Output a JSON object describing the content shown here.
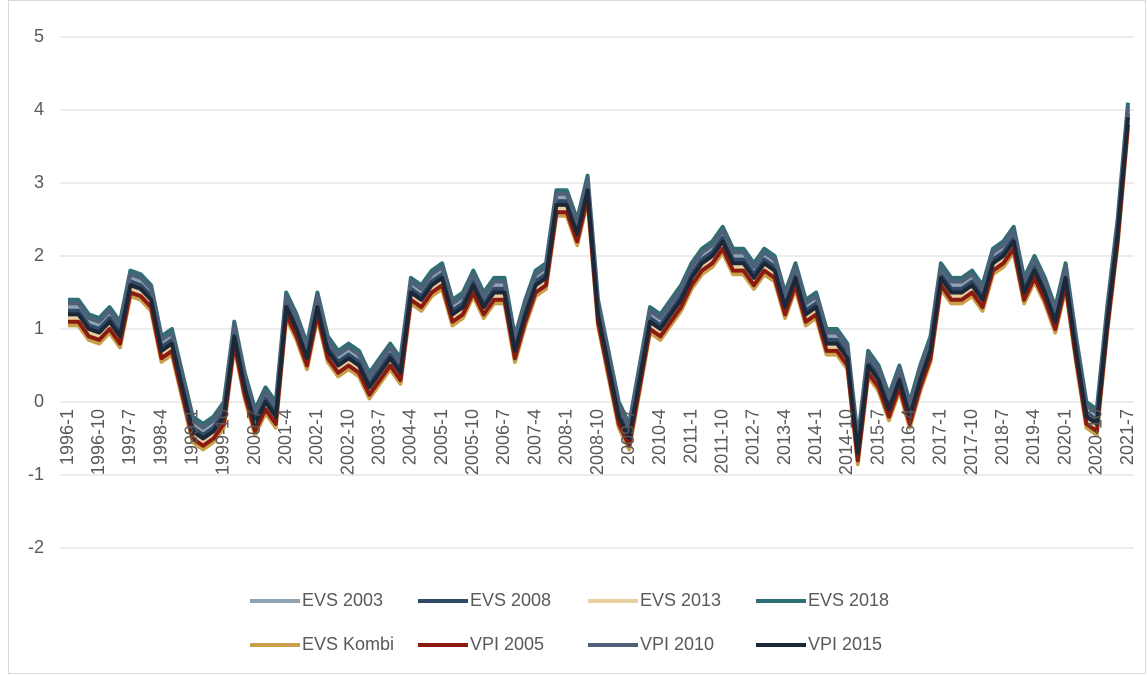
{
  "chart_data": {
    "type": "line",
    "categories": [
      "1996-1",
      null,
      null,
      "1996-10",
      null,
      null,
      "1997-7",
      null,
      null,
      "1998-4",
      null,
      null,
      "1999-1",
      null,
      null,
      "1999-10",
      null,
      null,
      "2000-7",
      null,
      null,
      "2001-4",
      null,
      null,
      "2002-1",
      null,
      null,
      "2002-10",
      null,
      null,
      "2003-7",
      null,
      null,
      "2004-4",
      null,
      null,
      "2005-1",
      null,
      null,
      "2005-10",
      null,
      null,
      "2006-7",
      null,
      null,
      "2007-4",
      null,
      null,
      "2008-1",
      null,
      null,
      "2008-10",
      null,
      null,
      "2009-7",
      null,
      null,
      "2010-4",
      null,
      null,
      "2011-1",
      null,
      null,
      "2011-10",
      null,
      null,
      "2012-7",
      null,
      null,
      "2013-4",
      null,
      null,
      "2014-1",
      null,
      null,
      "2014-10",
      null,
      null,
      "2015-7",
      null,
      null,
      "2016-4",
      null,
      null,
      "2017-1",
      null,
      null,
      "2017-10",
      null,
      null,
      "2018-7",
      null,
      null,
      "2019-4",
      null,
      null,
      "2020-1",
      null,
      null,
      "2020-10",
      null,
      null,
      "2021-7"
    ],
    "ylim": [
      -2,
      5
    ],
    "yticks": [
      -2,
      -1,
      0,
      1,
      2,
      3,
      4,
      5
    ],
    "grid": true,
    "legend": "bottom",
    "series": [
      {
        "name": "EVS 2003",
        "color": "#8fa3b3",
        "values": [
          1.3,
          1.3,
          1.1,
          1.05,
          1.2,
          1.0,
          1.7,
          1.65,
          1.5,
          0.8,
          0.9,
          0.3,
          -0.3,
          -0.4,
          -0.3,
          -0.1,
          1.0,
          0.3,
          -0.2,
          0.1,
          -0.1,
          1.4,
          1.1,
          0.7,
          1.4,
          0.8,
          0.6,
          0.7,
          0.6,
          0.3,
          0.5,
          0.7,
          0.5,
          1.6,
          1.5,
          1.7,
          1.8,
          1.3,
          1.4,
          1.7,
          1.4,
          1.6,
          1.6,
          0.8,
          1.3,
          1.7,
          1.8,
          2.8,
          2.8,
          2.4,
          3.0,
          1.3,
          0.6,
          -0.1,
          -0.4,
          0.4,
          1.2,
          1.1,
          1.3,
          1.5,
          1.8,
          2.0,
          2.1,
          2.3,
          2.0,
          2.0,
          1.8,
          2.0,
          1.9,
          1.4,
          1.8,
          1.3,
          1.4,
          0.9,
          0.9,
          0.7,
          -0.6,
          0.6,
          0.4,
          0.0,
          0.4,
          -0.1,
          0.4,
          0.8,
          1.8,
          1.6,
          1.6,
          1.7,
          1.5,
          2.0,
          2.1,
          2.3,
          1.6,
          1.9,
          1.6,
          1.2,
          1.8,
          0.8,
          -0.1,
          -0.2,
          1.2,
          2.4,
          4.0
        ]
      },
      {
        "name": "EVS 2008",
        "color": "#2e4a66",
        "values": [
          1.25,
          1.25,
          1.05,
          1.0,
          1.15,
          0.95,
          1.65,
          1.6,
          1.45,
          0.75,
          0.85,
          0.25,
          -0.35,
          -0.45,
          -0.35,
          -0.15,
          0.95,
          0.25,
          -0.25,
          0.05,
          -0.15,
          1.35,
          1.05,
          0.65,
          1.35,
          0.75,
          0.55,
          0.65,
          0.55,
          0.25,
          0.45,
          0.65,
          0.45,
          1.55,
          1.45,
          1.65,
          1.75,
          1.25,
          1.35,
          1.65,
          1.35,
          1.55,
          1.55,
          0.75,
          1.25,
          1.65,
          1.75,
          2.75,
          2.75,
          2.35,
          2.95,
          1.25,
          0.55,
          -0.15,
          -0.45,
          0.35,
          1.15,
          1.05,
          1.25,
          1.45,
          1.75,
          1.95,
          2.05,
          2.25,
          1.95,
          1.95,
          1.75,
          1.95,
          1.85,
          1.35,
          1.75,
          1.25,
          1.35,
          0.85,
          0.85,
          0.65,
          -0.65,
          0.55,
          0.35,
          -0.05,
          0.35,
          -0.15,
          0.35,
          0.75,
          1.75,
          1.55,
          1.55,
          1.65,
          1.45,
          1.95,
          2.05,
          2.25,
          1.55,
          1.85,
          1.55,
          1.15,
          1.75,
          0.75,
          -0.15,
          -0.25,
          1.15,
          2.35,
          3.95
        ]
      },
      {
        "name": "EVS 2013",
        "color": "#e8cfa0",
        "values": [
          1.15,
          1.15,
          0.95,
          0.9,
          1.05,
          0.85,
          1.55,
          1.5,
          1.35,
          0.65,
          0.75,
          0.15,
          -0.45,
          -0.55,
          -0.45,
          -0.25,
          0.85,
          0.15,
          -0.35,
          -0.05,
          -0.25,
          1.25,
          0.95,
          0.55,
          1.25,
          0.65,
          0.45,
          0.55,
          0.45,
          0.15,
          0.35,
          0.55,
          0.35,
          1.45,
          1.35,
          1.55,
          1.65,
          1.15,
          1.25,
          1.55,
          1.25,
          1.45,
          1.45,
          0.65,
          1.15,
          1.55,
          1.65,
          2.65,
          2.65,
          2.25,
          2.85,
          1.15,
          0.45,
          -0.25,
          -0.55,
          0.25,
          1.05,
          0.95,
          1.15,
          1.35,
          1.65,
          1.85,
          1.95,
          2.15,
          1.85,
          1.85,
          1.65,
          1.85,
          1.75,
          1.25,
          1.65,
          1.15,
          1.25,
          0.75,
          0.75,
          0.55,
          -0.75,
          0.45,
          0.25,
          -0.15,
          0.25,
          -0.25,
          0.25,
          0.65,
          1.65,
          1.45,
          1.45,
          1.55,
          1.35,
          1.85,
          1.95,
          2.15,
          1.45,
          1.75,
          1.45,
          1.05,
          1.65,
          0.65,
          -0.25,
          -0.35,
          1.05,
          2.25,
          3.85
        ]
      },
      {
        "name": "EVS 2018",
        "color": "#2e6f73",
        "values": [
          1.4,
          1.4,
          1.2,
          1.15,
          1.3,
          1.1,
          1.8,
          1.75,
          1.6,
          0.9,
          1.0,
          0.4,
          -0.2,
          -0.3,
          -0.2,
          0.0,
          1.1,
          0.4,
          -0.1,
          0.2,
          0.0,
          1.5,
          1.2,
          0.8,
          1.5,
          0.9,
          0.7,
          0.8,
          0.7,
          0.4,
          0.6,
          0.8,
          0.6,
          1.7,
          1.6,
          1.8,
          1.9,
          1.4,
          1.5,
          1.8,
          1.5,
          1.7,
          1.7,
          0.9,
          1.4,
          1.8,
          1.9,
          2.9,
          2.9,
          2.5,
          3.1,
          1.4,
          0.7,
          0.0,
          -0.3,
          0.5,
          1.3,
          1.2,
          1.4,
          1.6,
          1.9,
          2.1,
          2.2,
          2.4,
          2.1,
          2.1,
          1.9,
          2.1,
          2.0,
          1.5,
          1.9,
          1.4,
          1.5,
          1.0,
          1.0,
          0.8,
          -0.5,
          0.7,
          0.5,
          0.1,
          0.5,
          0.0,
          0.5,
          0.9,
          1.9,
          1.7,
          1.7,
          1.8,
          1.6,
          2.1,
          2.2,
          2.4,
          1.7,
          2.0,
          1.7,
          1.3,
          1.9,
          0.9,
          0.0,
          -0.1,
          1.3,
          2.5,
          4.1
        ]
      },
      {
        "name": "EVS Kombi",
        "color": "#c9a04a",
        "values": [
          1.05,
          1.05,
          0.85,
          0.8,
          0.95,
          0.75,
          1.45,
          1.4,
          1.25,
          0.55,
          0.65,
          0.05,
          -0.55,
          -0.65,
          -0.55,
          -0.35,
          0.75,
          0.05,
          -0.45,
          -0.15,
          -0.35,
          1.15,
          0.85,
          0.45,
          1.15,
          0.55,
          0.35,
          0.45,
          0.35,
          0.05,
          0.25,
          0.45,
          0.25,
          1.35,
          1.25,
          1.45,
          1.55,
          1.05,
          1.15,
          1.45,
          1.15,
          1.35,
          1.35,
          0.55,
          1.05,
          1.45,
          1.55,
          2.55,
          2.55,
          2.15,
          2.75,
          1.05,
          0.35,
          -0.35,
          -0.65,
          0.15,
          0.95,
          0.85,
          1.05,
          1.25,
          1.55,
          1.75,
          1.85,
          2.05,
          1.75,
          1.75,
          1.55,
          1.75,
          1.65,
          1.15,
          1.55,
          1.05,
          1.15,
          0.65,
          0.65,
          0.45,
          -0.85,
          0.35,
          0.15,
          -0.25,
          0.15,
          -0.35,
          0.15,
          0.55,
          1.55,
          1.35,
          1.35,
          1.45,
          1.25,
          1.75,
          1.85,
          2.05,
          1.35,
          1.65,
          1.35,
          0.95,
          1.55,
          0.55,
          -0.35,
          -0.45,
          0.95,
          2.15,
          3.75
        ]
      },
      {
        "name": "VPI 2005",
        "color": "#8b1a10",
        "values": [
          1.1,
          1.1,
          0.9,
          0.85,
          1.0,
          0.8,
          1.5,
          1.45,
          1.3,
          0.6,
          0.7,
          0.1,
          -0.5,
          -0.6,
          -0.5,
          -0.3,
          0.8,
          0.1,
          -0.4,
          -0.1,
          -0.3,
          1.2,
          0.9,
          0.5,
          1.2,
          0.6,
          0.4,
          0.5,
          0.4,
          0.1,
          0.3,
          0.5,
          0.3,
          1.4,
          1.3,
          1.5,
          1.6,
          1.1,
          1.2,
          1.5,
          1.2,
          1.4,
          1.4,
          0.6,
          1.1,
          1.5,
          1.6,
          2.6,
          2.6,
          2.2,
          2.8,
          1.1,
          0.4,
          -0.3,
          -0.6,
          0.2,
          1.0,
          0.9,
          1.1,
          1.3,
          1.6,
          1.8,
          1.9,
          2.1,
          1.8,
          1.8,
          1.6,
          1.8,
          1.7,
          1.2,
          1.6,
          1.1,
          1.2,
          0.7,
          0.7,
          0.5,
          -0.8,
          0.4,
          0.2,
          -0.2,
          0.2,
          -0.3,
          0.2,
          0.6,
          1.6,
          1.4,
          1.4,
          1.5,
          1.3,
          1.8,
          1.9,
          2.1,
          1.4,
          1.7,
          1.4,
          1.0,
          1.6,
          0.6,
          -0.3,
          -0.4,
          1.0,
          2.2,
          3.8
        ]
      },
      {
        "name": "VPI 2010",
        "color": "#4f6178",
        "values": [
          1.35,
          1.35,
          1.15,
          1.1,
          1.25,
          1.05,
          1.75,
          1.7,
          1.55,
          0.85,
          0.95,
          0.35,
          -0.25,
          -0.35,
          -0.25,
          -0.05,
          1.05,
          0.35,
          -0.15,
          0.15,
          -0.05,
          1.45,
          1.15,
          0.75,
          1.45,
          0.85,
          0.65,
          0.75,
          0.65,
          0.35,
          0.55,
          0.75,
          0.55,
          1.65,
          1.55,
          1.75,
          1.85,
          1.35,
          1.45,
          1.75,
          1.45,
          1.65,
          1.65,
          0.85,
          1.35,
          1.75,
          1.85,
          2.85,
          2.85,
          2.45,
          3.05,
          1.35,
          0.65,
          -0.05,
          -0.35,
          0.45,
          1.25,
          1.15,
          1.35,
          1.55,
          1.85,
          2.05,
          2.15,
          2.35,
          2.05,
          2.05,
          1.85,
          2.05,
          1.95,
          1.45,
          1.85,
          1.35,
          1.45,
          0.95,
          0.95,
          0.75,
          -0.55,
          0.65,
          0.45,
          0.05,
          0.45,
          -0.05,
          0.45,
          0.85,
          1.85,
          1.65,
          1.65,
          1.75,
          1.55,
          2.05,
          2.15,
          2.35,
          1.65,
          1.95,
          1.65,
          1.25,
          1.85,
          0.85,
          -0.05,
          -0.15,
          1.25,
          2.45,
          4.05
        ]
      },
      {
        "name": "VPI 2015",
        "color": "#1c2838",
        "values": [
          1.2,
          1.2,
          1.0,
          0.95,
          1.1,
          0.9,
          1.6,
          1.55,
          1.4,
          0.7,
          0.8,
          0.2,
          -0.4,
          -0.5,
          -0.4,
          -0.2,
          0.9,
          0.2,
          -0.3,
          0.0,
          -0.2,
          1.3,
          1.0,
          0.6,
          1.3,
          0.7,
          0.5,
          0.6,
          0.5,
          0.2,
          0.4,
          0.6,
          0.4,
          1.5,
          1.4,
          1.6,
          1.7,
          1.2,
          1.3,
          1.6,
          1.3,
          1.5,
          1.5,
          0.7,
          1.2,
          1.6,
          1.7,
          2.7,
          2.7,
          2.3,
          2.9,
          1.2,
          0.5,
          -0.2,
          -0.5,
          0.3,
          1.1,
          1.0,
          1.2,
          1.4,
          1.7,
          1.9,
          2.0,
          2.2,
          1.9,
          1.9,
          1.7,
          1.9,
          1.8,
          1.3,
          1.7,
          1.2,
          1.3,
          0.8,
          0.8,
          0.6,
          -0.7,
          0.5,
          0.3,
          -0.1,
          0.3,
          -0.2,
          0.3,
          0.7,
          1.7,
          1.5,
          1.5,
          1.6,
          1.4,
          1.9,
          2.0,
          2.2,
          1.5,
          1.8,
          1.5,
          1.1,
          1.7,
          0.7,
          -0.2,
          -0.3,
          1.1,
          2.3,
          3.9
        ]
      }
    ]
  }
}
